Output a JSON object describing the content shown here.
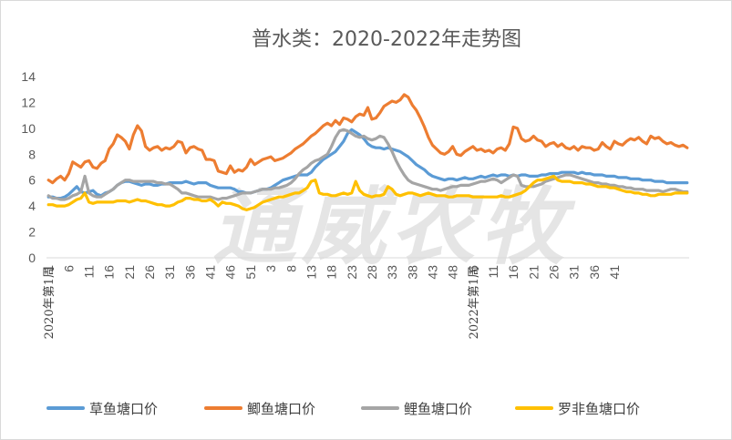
{
  "chart_data": {
    "type": "line",
    "title": "普水类：2020-2022年走势图",
    "watermark": "通威农牧",
    "ylim": [
      0,
      14
    ],
    "yticks": [
      "0",
      "2",
      "4",
      "6",
      "8",
      "10",
      "12",
      "14"
    ],
    "xtick_labels": [
      "1",
      "6",
      "11",
      "16",
      "21",
      "26",
      "31",
      "36",
      "41",
      "46",
      "51",
      "3",
      "8",
      "13",
      "18",
      "23",
      "28",
      "33",
      "38",
      "43",
      "48",
      "6",
      "11",
      "16",
      "21",
      "26",
      "31",
      "36",
      "41"
    ],
    "year_labels": [
      "2020年第1周",
      "2022年第1周"
    ],
    "grid": false,
    "legend_position": "bottom",
    "series": [
      {
        "name": "草鱼塘口价",
        "color": "#5b9bd5",
        "values": [
          4.7,
          4.7,
          4.6,
          4.6,
          4.7,
          4.9,
          5.2,
          5.5,
          5.1,
          5.0,
          5.1,
          5.2,
          4.9,
          4.8,
          5.0,
          5.1,
          5.3,
          5.6,
          5.8,
          5.9,
          5.9,
          5.8,
          5.7,
          5.6,
          5.7,
          5.7,
          5.6,
          5.6,
          5.7,
          5.7,
          5.8,
          5.8,
          5.8,
          5.8,
          5.9,
          5.8,
          5.7,
          5.8,
          5.8,
          5.8,
          5.6,
          5.5,
          5.4,
          5.4,
          5.4,
          5.4,
          5.3,
          5.1,
          5.1,
          5.0,
          5.0,
          5.1,
          5.2,
          5.3,
          5.3,
          5.4,
          5.6,
          5.8,
          6.0,
          6.1,
          6.2,
          6.3,
          6.4,
          6.4,
          6.4,
          6.6,
          7.0,
          7.3,
          7.6,
          7.8,
          8.0,
          8.2,
          8.6,
          9.0,
          9.6,
          9.9,
          9.7,
          9.5,
          9.2,
          8.8,
          8.6,
          8.5,
          8.5,
          8.4,
          8.5,
          8.4,
          8.3,
          8.2,
          8.0,
          7.8,
          7.5,
          7.2,
          7.0,
          6.8,
          6.5,
          6.3,
          6.2,
          6.1,
          6.0,
          6.1,
          6.1,
          6.0,
          6.1,
          6.2,
          6.1,
          6.1,
          6.2,
          6.3,
          6.2,
          6.3,
          6.4,
          6.3,
          6.4,
          6.4,
          6.3,
          6.4,
          6.3,
          6.4,
          6.4,
          6.3,
          6.3,
          6.3,
          6.4,
          6.4,
          6.5,
          6.5,
          6.5,
          6.6,
          6.6,
          6.6,
          6.6,
          6.5,
          6.6,
          6.5,
          6.5,
          6.4,
          6.4,
          6.4,
          6.3,
          6.3,
          6.3,
          6.2,
          6.2,
          6.2,
          6.1,
          6.1,
          6.1,
          6.0,
          6.0,
          6.0,
          5.9,
          5.9,
          5.9,
          5.8,
          5.8,
          5.8,
          5.8,
          5.8,
          5.8
        ]
      },
      {
        "name": "鲫鱼塘口价",
        "color": "#ed7d31",
        "values": [
          6.0,
          5.8,
          6.1,
          6.3,
          6.0,
          6.5,
          7.4,
          7.2,
          7.0,
          7.4,
          7.5,
          7.0,
          6.9,
          7.3,
          7.5,
          8.4,
          8.8,
          9.5,
          9.3,
          9.0,
          8.4,
          9.5,
          10.2,
          9.8,
          8.6,
          8.3,
          8.5,
          8.6,
          8.3,
          8.5,
          8.4,
          8.6,
          9.0,
          8.9,
          8.1,
          8.5,
          8.6,
          8.4,
          8.3,
          7.6,
          7.6,
          7.5,
          6.7,
          6.6,
          6.5,
          7.1,
          6.6,
          6.8,
          6.7,
          7.0,
          7.6,
          7.2,
          7.4,
          7.6,
          7.7,
          7.8,
          7.5,
          7.6,
          7.7,
          7.9,
          8.1,
          8.4,
          8.6,
          8.8,
          9.1,
          9.4,
          9.6,
          9.9,
          10.2,
          10.4,
          10.2,
          10.6,
          10.3,
          10.8,
          10.7,
          10.5,
          10.9,
          11.1,
          11.0,
          11.6,
          10.7,
          10.8,
          11.2,
          11.7,
          11.9,
          12.1,
          12.0,
          12.2,
          12.6,
          12.4,
          11.8,
          11.4,
          10.8,
          10.1,
          9.3,
          8.7,
          8.4,
          8.1,
          8.0,
          8.2,
          8.6,
          8.0,
          7.9,
          8.2,
          8.4,
          8.6,
          8.3,
          8.4,
          8.2,
          8.3,
          8.1,
          8.4,
          8.5,
          8.3,
          8.8,
          10.1,
          10.0,
          9.2,
          9.0,
          9.1,
          9.4,
          9.1,
          9.0,
          8.6,
          8.8,
          8.9,
          8.6,
          8.8,
          8.5,
          8.4,
          8.6,
          8.3,
          8.6,
          8.5,
          8.5,
          8.3,
          8.4,
          8.9,
          8.6,
          8.4,
          9.0,
          8.8,
          8.7,
          9.0,
          9.2,
          9.1,
          9.3,
          9.0,
          8.8,
          9.4,
          9.2,
          9.3,
          9.0,
          8.8,
          8.9,
          8.7,
          8.6,
          8.7,
          8.5
        ]
      },
      {
        "name": "鲤鱼塘口价",
        "color": "#a5a5a5",
        "values": [
          4.8,
          4.6,
          4.6,
          4.5,
          4.5,
          4.6,
          4.8,
          4.9,
          5.1,
          6.3,
          5.0,
          4.8,
          4.7,
          4.7,
          4.9,
          5.1,
          5.3,
          5.6,
          5.8,
          6.0,
          6.0,
          5.9,
          5.9,
          5.9,
          5.9,
          5.9,
          5.9,
          5.8,
          5.8,
          5.7,
          5.7,
          5.5,
          5.3,
          5.0,
          5.0,
          4.9,
          4.8,
          4.7,
          4.7,
          4.7,
          4.7,
          4.6,
          4.5,
          4.6,
          4.6,
          4.7,
          4.8,
          4.9,
          5.0,
          5.0,
          5.0,
          5.1,
          5.2,
          5.3,
          5.3,
          5.3,
          5.4,
          5.4,
          5.5,
          5.6,
          5.8,
          6.1,
          6.5,
          6.8,
          7.0,
          7.3,
          7.5,
          7.6,
          7.8,
          8.0,
          8.6,
          9.3,
          9.8,
          9.9,
          9.8,
          9.6,
          9.4,
          9.3,
          9.4,
          9.2,
          9.1,
          9.2,
          9.4,
          9.3,
          8.8,
          8.2,
          7.5,
          6.9,
          6.4,
          6.0,
          5.8,
          5.7,
          5.6,
          5.5,
          5.4,
          5.3,
          5.3,
          5.2,
          5.3,
          5.4,
          5.5,
          5.5,
          5.6,
          5.6,
          5.6,
          5.7,
          5.8,
          5.9,
          5.9,
          6.0,
          6.1,
          6.0,
          5.8,
          6.0,
          6.2,
          6.4,
          6.3,
          5.6,
          5.5,
          5.5,
          5.5,
          5.6,
          5.7,
          5.9,
          6.0,
          6.1,
          6.2,
          6.3,
          6.4,
          6.4,
          6.3,
          6.2,
          6.1,
          6.0,
          5.9,
          5.8,
          5.8,
          5.7,
          5.7,
          5.6,
          5.6,
          5.5,
          5.5,
          5.4,
          5.4,
          5.3,
          5.3,
          5.3,
          5.2,
          5.2,
          5.2,
          5.2,
          5.1,
          5.2,
          5.3,
          5.3,
          5.2,
          5.1,
          5.1
        ]
      },
      {
        "name": "罗非鱼塘口价",
        "color": "#ffc000",
        "values": [
          4.1,
          4.1,
          4.0,
          4.0,
          4.0,
          4.1,
          4.3,
          4.5,
          4.6,
          5.0,
          4.3,
          4.2,
          4.3,
          4.3,
          4.3,
          4.3,
          4.3,
          4.4,
          4.4,
          4.4,
          4.3,
          4.4,
          4.5,
          4.4,
          4.4,
          4.3,
          4.2,
          4.1,
          4.1,
          4.0,
          4.0,
          4.1,
          4.3,
          4.4,
          4.6,
          4.6,
          4.5,
          4.5,
          4.4,
          4.4,
          4.5,
          4.3,
          4.0,
          4.3,
          4.2,
          4.2,
          4.1,
          4.0,
          3.8,
          3.7,
          3.8,
          3.9,
          4.1,
          4.3,
          4.4,
          4.5,
          4.6,
          4.7,
          4.7,
          4.8,
          4.9,
          5.0,
          5.0,
          5.2,
          5.4,
          5.9,
          6.0,
          5.0,
          4.9,
          4.9,
          4.8,
          4.8,
          4.9,
          5.0,
          4.9,
          5.0,
          5.9,
          5.2,
          4.9,
          4.8,
          4.7,
          4.8,
          4.8,
          4.9,
          5.5,
          5.3,
          4.9,
          4.8,
          4.9,
          5.0,
          5.0,
          4.9,
          4.8,
          4.9,
          5.0,
          4.9,
          4.8,
          4.8,
          4.8,
          4.7,
          4.7,
          4.8,
          4.8,
          4.8,
          4.8,
          4.7,
          4.7,
          4.7,
          4.7,
          4.7,
          4.7,
          4.7,
          4.8,
          4.7,
          4.7,
          4.8,
          4.9,
          5.0,
          5.2,
          5.5,
          5.8,
          6.0,
          6.0,
          6.1,
          6.2,
          6.3,
          6.0,
          5.9,
          5.9,
          5.9,
          5.8,
          5.8,
          5.8,
          5.7,
          5.7,
          5.6,
          5.5,
          5.5,
          5.5,
          5.4,
          5.4,
          5.3,
          5.2,
          5.1,
          5.1,
          5.0,
          5.0,
          4.9,
          4.9,
          4.8,
          4.8,
          4.9,
          4.9,
          4.9,
          4.9,
          5.0,
          5.0,
          5.0,
          5.0
        ]
      }
    ]
  }
}
